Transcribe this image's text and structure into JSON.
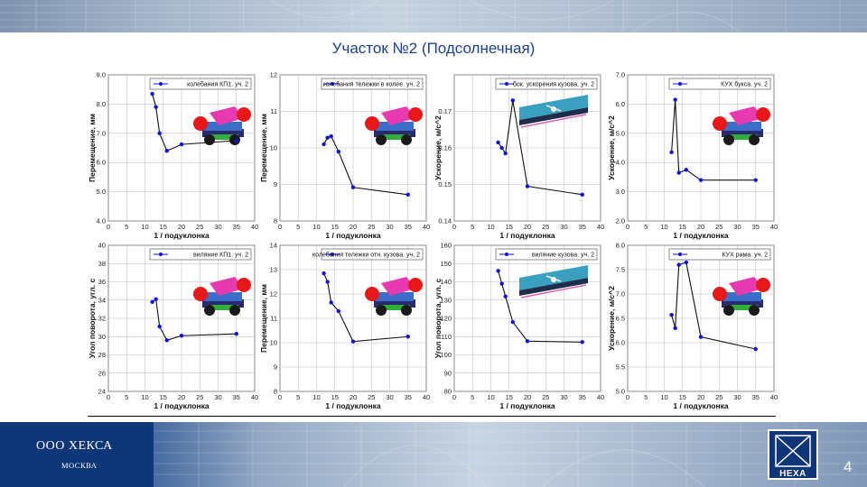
{
  "header": {
    "title": "Участок №2 (Подсолнечная)"
  },
  "footer": {
    "company": "ООО ХЕКСА",
    "city": "МОСКВА",
    "logo": "HEXA",
    "page_number": "4"
  },
  "colors": {
    "title": "#1c3f8f",
    "marker": "#1010e0",
    "line": "#111111",
    "footer_blue": "#0f3778"
  },
  "chart_data": [
    {
      "type": "line",
      "title": "",
      "xlabel": "1 / подуклонка",
      "ylabel": "Перемещение, мм",
      "xlim": [
        0,
        40
      ],
      "ylim": [
        4.0,
        9.0
      ],
      "xticks": [
        0,
        5,
        10,
        15,
        20,
        25,
        30,
        35,
        40
      ],
      "yticks": [
        4.0,
        5.0,
        6.0,
        7.0,
        8.0,
        9.0
      ],
      "ytick_labels": [
        "4.0",
        "5.0",
        "6.0",
        "7.0",
        "8.0",
        "9.0"
      ],
      "grid": true,
      "legend": "top-right",
      "series": [
        {
          "name": "колебания КП1. уч. 2",
          "x": [
            12,
            13,
            14,
            16,
            20,
            35
          ],
          "y": [
            8.35,
            7.9,
            7.0,
            6.4,
            6.62,
            6.75
          ]
        }
      ],
      "inset": {
        "name": "bogie-model-image",
        "kind": "bogie"
      }
    },
    {
      "type": "line",
      "title": "",
      "xlabel": "1 / подуклонка",
      "ylabel": "Перемещение, мм",
      "xlim": [
        0,
        40
      ],
      "ylim": [
        8,
        12
      ],
      "xticks": [
        0,
        5,
        10,
        15,
        20,
        25,
        30,
        35,
        40
      ],
      "yticks": [
        8,
        9,
        10,
        11,
        12
      ],
      "ytick_labels": [
        "8",
        "9",
        "10",
        "11",
        "12"
      ],
      "grid": true,
      "legend": "top-right",
      "series": [
        {
          "name": "колебания тележки в колее. уч. 2",
          "x": [
            12,
            13,
            14,
            16,
            20,
            35
          ],
          "y": [
            10.1,
            10.28,
            10.32,
            9.9,
            8.92,
            8.72
          ]
        }
      ],
      "inset": {
        "name": "bogie-model-image",
        "kind": "bogie"
      }
    },
    {
      "type": "line",
      "title": "",
      "xlabel": "1 / подуклонка",
      "ylabel": "Ускорение, м/с^2",
      "xlim": [
        0,
        40
      ],
      "ylim": [
        0.14,
        0.18
      ],
      "xticks": [
        0,
        5,
        10,
        15,
        20,
        25,
        30,
        35,
        40
      ],
      "yticks": [
        0.14,
        0.15,
        0.16,
        0.17,
        0.18
      ],
      "ytick_labels": [
        "0.14",
        "0.15",
        "0.16",
        "0.17",
        ""
      ],
      "grid": true,
      "legend": "top-right",
      "series": [
        {
          "name": "бок. ускорения кузова. уч. 2",
          "x": [
            12,
            13,
            14,
            16,
            20,
            35
          ],
          "y": [
            0.1615,
            0.16,
            0.1585,
            0.173,
            0.1495,
            0.1472
          ]
        }
      ],
      "inset": {
        "name": "car-body-image",
        "kind": "body"
      }
    },
    {
      "type": "line",
      "title": "",
      "xlabel": "1 / подуклонка",
      "ylabel": "Ускорение, м/с^2",
      "xlim": [
        0,
        40
      ],
      "ylim": [
        2.0,
        7.0
      ],
      "xticks": [
        0,
        5,
        10,
        15,
        20,
        25,
        30,
        35,
        40
      ],
      "yticks": [
        2.0,
        3.0,
        4.0,
        5.0,
        6.0,
        7.0
      ],
      "ytick_labels": [
        "2.0",
        "3.0",
        "4.0",
        "5.0",
        "6.0",
        "7.0"
      ],
      "grid": true,
      "legend": "top-right",
      "series": [
        {
          "name": "КУХ букса. уч. 2",
          "x": [
            12,
            13,
            14,
            16,
            20,
            35
          ],
          "y": [
            4.35,
            6.15,
            3.65,
            3.75,
            3.4,
            3.4
          ]
        }
      ],
      "inset": {
        "name": "bogie-model-image",
        "kind": "bogie"
      }
    },
    {
      "type": "line",
      "title": "",
      "xlabel": "1 / подуклонка",
      "ylabel": "Угол поворота, угл. с",
      "xlim": [
        0,
        40
      ],
      "ylim": [
        24,
        40
      ],
      "xticks": [
        0,
        5,
        10,
        15,
        20,
        25,
        30,
        35,
        40
      ],
      "yticks": [
        24,
        26,
        28,
        30,
        32,
        34,
        36,
        38,
        40
      ],
      "ytick_labels": [
        "24",
        "26",
        "28",
        "30",
        "32",
        "34",
        "36",
        "38",
        "40"
      ],
      "grid": true,
      "legend": "top-right",
      "series": [
        {
          "name": "виляние КП1. уч. 2",
          "x": [
            12,
            13,
            14,
            16,
            20,
            35
          ],
          "y": [
            33.8,
            34.1,
            31.1,
            29.6,
            30.1,
            30.3
          ]
        }
      ],
      "inset": {
        "name": "bogie-model-image",
        "kind": "bogie"
      }
    },
    {
      "type": "line",
      "title": "",
      "xlabel": "1 / подуклонка",
      "ylabel": "Перемещение, мм",
      "xlim": [
        0,
        40
      ],
      "ylim": [
        8,
        14
      ],
      "xticks": [
        0,
        5,
        10,
        15,
        20,
        25,
        30,
        35,
        40
      ],
      "yticks": [
        8,
        9,
        10,
        11,
        12,
        13,
        14
      ],
      "ytick_labels": [
        "8",
        "9",
        "10",
        "11",
        "12",
        "13",
        "14"
      ],
      "grid": true,
      "legend": "top-right",
      "series": [
        {
          "name": "колебания тележки отн. кузова. уч. 2",
          "x": [
            12,
            13,
            14,
            16,
            20,
            35
          ],
          "y": [
            12.85,
            12.5,
            11.65,
            11.3,
            10.05,
            10.25
          ]
        }
      ],
      "inset": {
        "name": "bogie-model-image",
        "kind": "bogie"
      }
    },
    {
      "type": "line",
      "title": "",
      "xlabel": "1 / подуклонка",
      "ylabel": "Угол поворота, угл. с",
      "xlim": [
        0,
        40
      ],
      "ylim": [
        80,
        160
      ],
      "xticks": [
        0,
        5,
        10,
        15,
        20,
        25,
        30,
        35,
        40
      ],
      "yticks": [
        80,
        90,
        100,
        110,
        120,
        130,
        140,
        150,
        160
      ],
      "ytick_labels": [
        "80",
        "90",
        "100",
        "110",
        "120",
        "130",
        "140",
        "150",
        "160"
      ],
      "grid": true,
      "legend": "top-right",
      "series": [
        {
          "name": "виляние кузова. уч. 2",
          "x": [
            12,
            13,
            14,
            16,
            20,
            35
          ],
          "y": [
            146,
            139,
            132,
            118,
            107.5,
            107
          ]
        }
      ],
      "inset": {
        "name": "car-body-image",
        "kind": "body"
      }
    },
    {
      "type": "line",
      "title": "",
      "xlabel": "1 / подуклонка",
      "ylabel": "Ускорение, м/с^2",
      "xlim": [
        0,
        40
      ],
      "ylim": [
        5.0,
        8.0
      ],
      "xticks": [
        0,
        5,
        10,
        15,
        20,
        25,
        30,
        35,
        40
      ],
      "yticks": [
        5.0,
        5.5,
        6.0,
        6.5,
        7.0,
        7.5,
        8.0
      ],
      "ytick_labels": [
        "5.0",
        "5.5",
        "6.0",
        "6.5",
        "7.0",
        "7.5",
        "8.0"
      ],
      "grid": true,
      "legend": "top-right",
      "series": [
        {
          "name": "КУХ рама. уч. 2",
          "x": [
            12,
            13,
            14,
            16,
            20,
            35
          ],
          "y": [
            6.57,
            6.3,
            7.6,
            7.65,
            6.12,
            5.87
          ]
        }
      ],
      "inset": {
        "name": "bogie-model-image",
        "kind": "bogie"
      }
    }
  ]
}
